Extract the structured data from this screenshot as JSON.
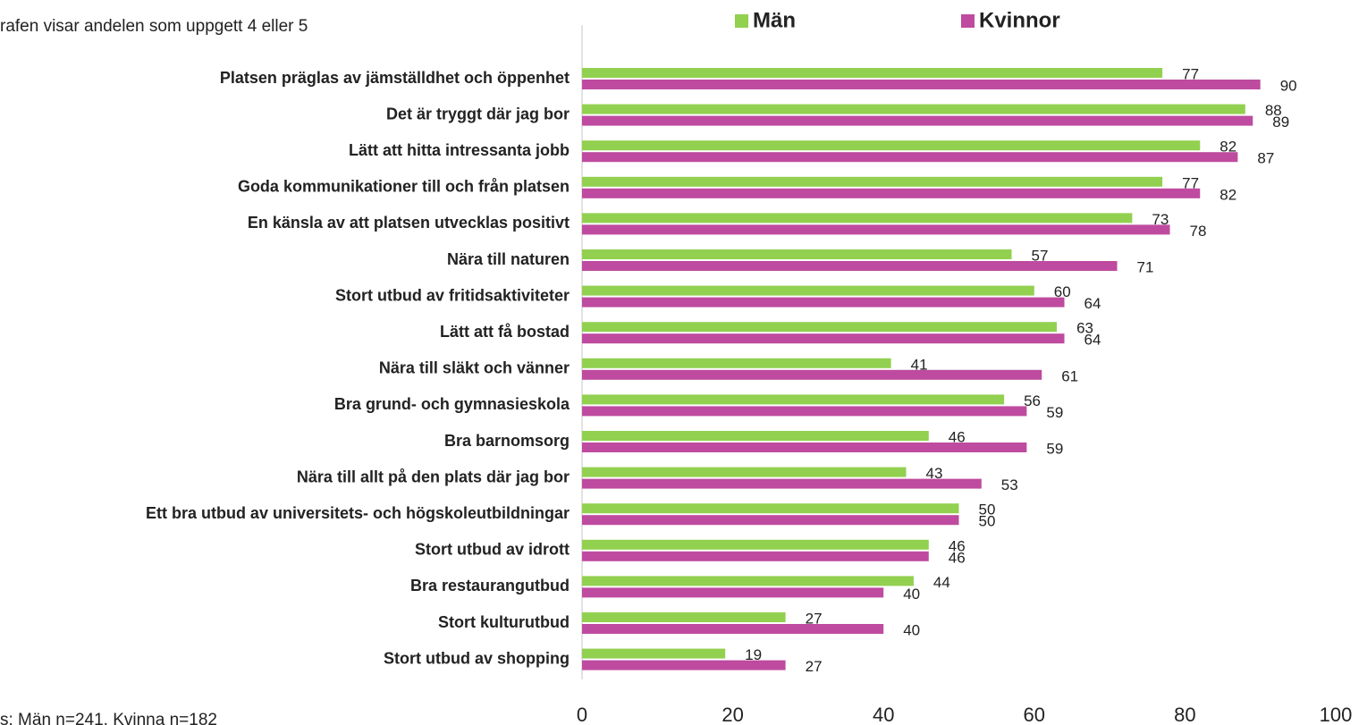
{
  "chart_data": {
    "type": "barh",
    "title": "rafen visar andelen som uppgett 4 eller 5",
    "annotations": [
      "s: Män n=241, Kvinna n=182"
    ],
    "categories": [
      "Platsen präglas av jämställdhet och öppenhet",
      "Det är tryggt där jag bor",
      "Lätt att hitta intressanta jobb",
      "Goda kommunikationer till och från platsen",
      "En känsla av att platsen utvecklas positivt",
      "Nära till naturen",
      "Stort utbud av fritidsaktiviteter",
      "Lätt att få bostad",
      "Nära till släkt och vänner",
      "Bra grund- och gymnasieskola",
      "Bra barnomsorg",
      "Nära till allt på den plats där jag bor",
      "Ett bra utbud av universitets- och högskoleutbildningar",
      "Stort utbud av idrott",
      "Bra restaurangutbud",
      "Stort kulturutbud",
      "Stort utbud av shopping"
    ],
    "series": [
      {
        "name": "Män",
        "color": "#92d050",
        "values": [
          77,
          88,
          82,
          77,
          73,
          57,
          60,
          63,
          41,
          56,
          46,
          43,
          50,
          46,
          44,
          27,
          19
        ]
      },
      {
        "name": "Kvinnor",
        "color": "#be4b9f",
        "values": [
          90,
          89,
          87,
          82,
          78,
          71,
          64,
          64,
          61,
          59,
          59,
          53,
          50,
          46,
          40,
          40,
          27
        ]
      }
    ],
    "xlim": [
      0,
      100
    ],
    "xticks": [
      0,
      20,
      40,
      60,
      80,
      100
    ],
    "legend": "top"
  }
}
